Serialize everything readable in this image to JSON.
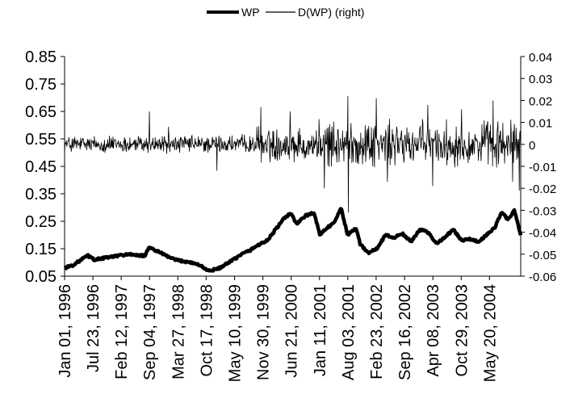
{
  "chart_data": {
    "type": "line",
    "title": "",
    "xlabel": "",
    "ylabel": "",
    "legend_position": "top",
    "x_tick_labels": [
      "Jan 01, 1996",
      "Jul 23, 1996",
      "Feb 12, 1997",
      "Sep 04, 1997",
      "Mar 27, 1998",
      "Oct 17, 1998",
      "May 10, 1999",
      "Nov 30, 1999",
      "Jun 21, 2000",
      "Jan 11, 2001",
      "Aug 03, 2001",
      "Feb 23, 2002",
      "Sep 16, 2002",
      "Apr 08, 2003",
      "Oct 29, 2003",
      "May 20, 2004"
    ],
    "x_range": [
      "1996-01-01",
      "2004-12-31"
    ],
    "y_left": {
      "range": [
        0.05,
        0.85
      ],
      "ticks": [
        "0.85",
        "0.75",
        "0.65",
        "0.55",
        "0.45",
        "0.35",
        "0.25",
        "0.15",
        "0.05"
      ]
    },
    "y_right": {
      "range": [
        -0.06,
        0.04
      ],
      "ticks": [
        "0.04",
        "0.03",
        "0.02",
        "0.01",
        "0",
        "-0.01",
        "-0.02",
        "-0.03",
        "-0.04",
        "-0.05",
        "-0.06"
      ]
    },
    "grid": false,
    "series": [
      {
        "name": "WP",
        "axis": "left",
        "style": "thick",
        "color": "#000000",
        "points": [
          [
            "1996-01-01",
            0.08
          ],
          [
            "1996-03-01",
            0.09
          ],
          [
            "1996-05-01",
            0.11
          ],
          [
            "1996-06-15",
            0.125
          ],
          [
            "1996-08-01",
            0.11
          ],
          [
            "1996-10-01",
            0.115
          ],
          [
            "1996-12-01",
            0.12
          ],
          [
            "1997-02-01",
            0.125
          ],
          [
            "1997-04-01",
            0.13
          ],
          [
            "1997-06-01",
            0.125
          ],
          [
            "1997-08-01",
            0.125
          ],
          [
            "1997-09-04",
            0.155
          ],
          [
            "1997-11-01",
            0.14
          ],
          [
            "1998-01-01",
            0.125
          ],
          [
            "1998-03-01",
            0.11
          ],
          [
            "1998-05-01",
            0.105
          ],
          [
            "1998-07-01",
            0.1
          ],
          [
            "1998-09-01",
            0.09
          ],
          [
            "1998-11-01",
            0.07
          ],
          [
            "1999-01-01",
            0.075
          ],
          [
            "1999-03-01",
            0.09
          ],
          [
            "1999-05-01",
            0.11
          ],
          [
            "1999-07-01",
            0.13
          ],
          [
            "1999-09-01",
            0.145
          ],
          [
            "1999-11-01",
            0.165
          ],
          [
            "2000-01-01",
            0.18
          ],
          [
            "2000-03-01",
            0.22
          ],
          [
            "2000-05-01",
            0.26
          ],
          [
            "2000-06-15",
            0.28
          ],
          [
            "2000-08-01",
            0.24
          ],
          [
            "2000-10-01",
            0.27
          ],
          [
            "2000-12-01",
            0.28
          ],
          [
            "2001-01-15",
            0.2
          ],
          [
            "2001-03-01",
            0.225
          ],
          [
            "2001-05-01",
            0.245
          ],
          [
            "2001-06-15",
            0.3
          ],
          [
            "2001-08-01",
            0.2
          ],
          [
            "2001-10-01",
            0.225
          ],
          [
            "2001-11-01",
            0.165
          ],
          [
            "2002-01-01",
            0.135
          ],
          [
            "2002-03-01",
            0.15
          ],
          [
            "2002-05-01",
            0.2
          ],
          [
            "2002-07-01",
            0.19
          ],
          [
            "2002-09-01",
            0.205
          ],
          [
            "2002-11-01",
            0.175
          ],
          [
            "2003-01-01",
            0.22
          ],
          [
            "2003-03-01",
            0.21
          ],
          [
            "2003-05-01",
            0.17
          ],
          [
            "2003-07-01",
            0.19
          ],
          [
            "2003-09-01",
            0.22
          ],
          [
            "2003-11-01",
            0.18
          ],
          [
            "2004-01-01",
            0.185
          ],
          [
            "2004-03-01",
            0.175
          ],
          [
            "2004-05-01",
            0.2
          ],
          [
            "2004-07-01",
            0.23
          ],
          [
            "2004-08-15",
            0.285
          ],
          [
            "2004-10-01",
            0.255
          ],
          [
            "2004-11-15",
            0.29
          ],
          [
            "2004-12-31",
            0.2
          ]
        ]
      },
      {
        "name": "D(WP) (right)",
        "axis": "right",
        "style": "thin",
        "color": "#000000",
        "points": [
          [
            "1997-09-04",
            0.015
          ],
          [
            "1998-01-20",
            0.008
          ],
          [
            "1999-01-01",
            -0.012
          ],
          [
            "1999-11-15",
            0.017
          ],
          [
            "2000-06-15",
            0.015
          ],
          [
            "2001-02-15",
            -0.02
          ],
          [
            "2001-08-03",
            0.022
          ],
          [
            "2001-08-08",
            -0.031
          ],
          [
            "2002-02-23",
            0.021
          ],
          [
            "2002-05-15",
            -0.017
          ],
          [
            "2003-03-01",
            0.018
          ],
          [
            "2003-04-08",
            -0.019
          ],
          [
            "2003-11-01",
            0.016
          ],
          [
            "2004-06-15",
            0.02
          ],
          [
            "2004-11-01",
            -0.017
          ],
          [
            "2004-12-20",
            -0.021
          ]
        ]
      }
    ]
  }
}
